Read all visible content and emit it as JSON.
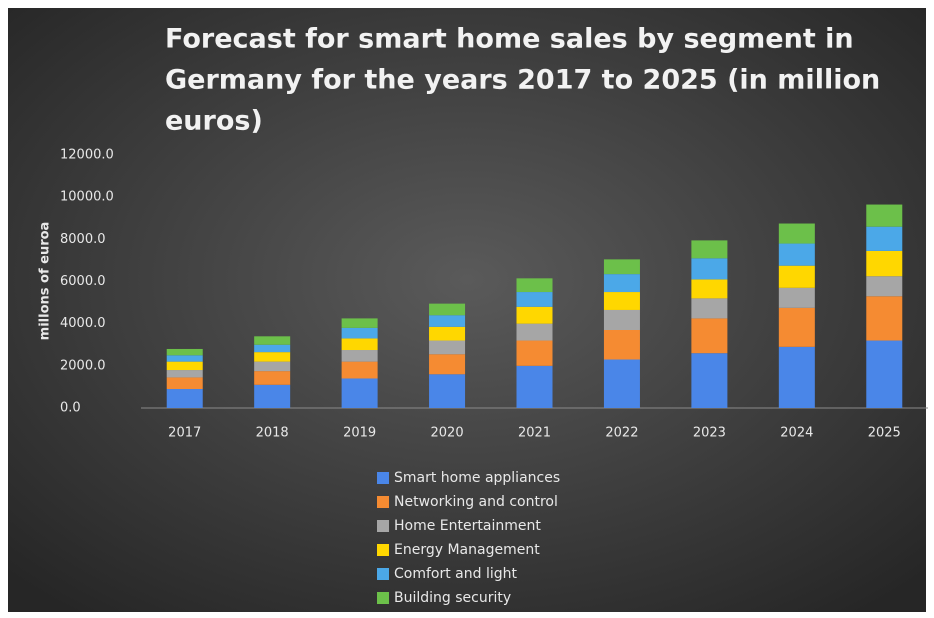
{
  "chart_data": {
    "type": "stacked_bar",
    "title_lines": [
      "Forecast for smart home sales by segment in",
      "Germany for the years 2017 to 2025 (in million",
      "euros)"
    ],
    "y_label": "millons of euroa",
    "categories": [
      "2017",
      "2018",
      "2019",
      "2020",
      "2021",
      "2022",
      "2023",
      "2024",
      "2025"
    ],
    "series": [
      {
        "name": "Smart home appliances",
        "color": "#4a86e8",
        "values": [
          900,
          1100,
          1400,
          1600,
          2000,
          2300,
          2600,
          2900,
          3200
        ]
      },
      {
        "name": "Networking and control",
        "color": "#f58b32",
        "values": [
          550,
          650,
          800,
          950,
          1200,
          1400,
          1650,
          1850,
          2100
        ]
      },
      {
        "name": "Home Entertainment",
        "color": "#a6a6a6",
        "values": [
          350,
          450,
          550,
          650,
          800,
          950,
          950,
          950,
          950
        ]
      },
      {
        "name": "Energy Management",
        "color": "#ffd700",
        "values": [
          400,
          450,
          550,
          650,
          800,
          850,
          900,
          1050,
          1200
        ]
      },
      {
        "name": "Comfort and light",
        "color": "#4ba8e8",
        "values": [
          300,
          350,
          500,
          550,
          700,
          850,
          1000,
          1050,
          1150
        ]
      },
      {
        "name": "Building security",
        "color": "#6cc04a",
        "values": [
          300,
          400,
          450,
          550,
          650,
          700,
          850,
          950,
          1050
        ]
      }
    ],
    "ylim": [
      0,
      12000
    ],
    "yticks": [
      {
        "value": 0,
        "label": "0.0"
      },
      {
        "value": 2000,
        "label": "2000.0"
      },
      {
        "value": 4000,
        "label": "4000.0"
      },
      {
        "value": 6000,
        "label": "6000.0"
      },
      {
        "value": 8000,
        "label": "8000.0"
      },
      {
        "value": 10000,
        "label": "10000.0"
      },
      {
        "value": 12000,
        "label": "12000.0"
      }
    ],
    "grid": false
  }
}
